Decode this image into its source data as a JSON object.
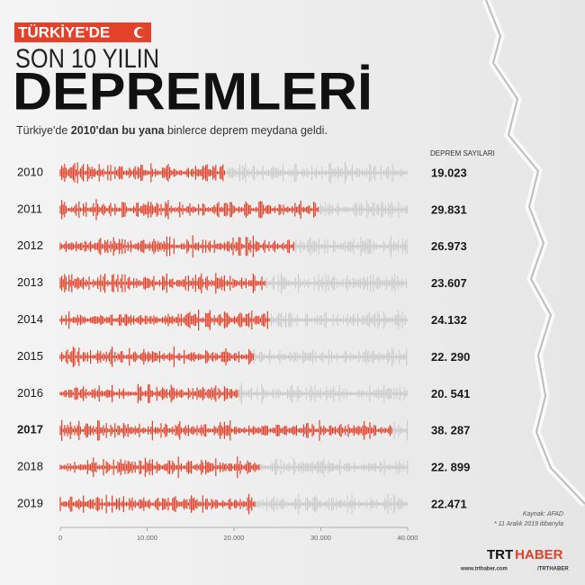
{
  "chart_data": {
    "type": "bar",
    "supertitle": "TÜRKİYE'DE",
    "subtitle_top": "SON 10 YILIN",
    "title": "DEPREMLERİ",
    "subtitle": [
      "Türkiye'de ",
      "2010'dan bu yana",
      " binlerce deprem meydana geldi."
    ],
    "value_header": "DEPREM SAYILARI",
    "categories": [
      "2010",
      "2011",
      "2012",
      "2013",
      "2014",
      "2015",
      "2016",
      "2017",
      "2018",
      "2019"
    ],
    "values": [
      19023,
      29831,
      26973,
      23607,
      24132,
      22290,
      20541,
      38287,
      22899,
      22471
    ],
    "value_labels": [
      "19.023",
      "29.831",
      "26.973",
      "23.607",
      "24.132",
      "22. 290",
      "20. 541",
      "38. 287",
      "22. 899",
      "22.471"
    ],
    "color": "#e2412a",
    "rest_color": "#c9c9c9",
    "xlim": [
      0,
      40000
    ],
    "xticks": [
      0,
      {
        "value": 10000,
        "label": "10.000"
      },
      {
        "value": 20000,
        "label": "20.000"
      },
      {
        "value": 30000,
        "label": "30.000"
      },
      {
        "value": 40000,
        "label": "40.000"
      }
    ],
    "source": "Kaynak: AFAD",
    "note": "* 11 Aralık 2019 itibarıyla",
    "brand": [
      "TRT",
      "HABER"
    ],
    "website": "www.trthaber.com",
    "social": "/TRTHABER"
  }
}
